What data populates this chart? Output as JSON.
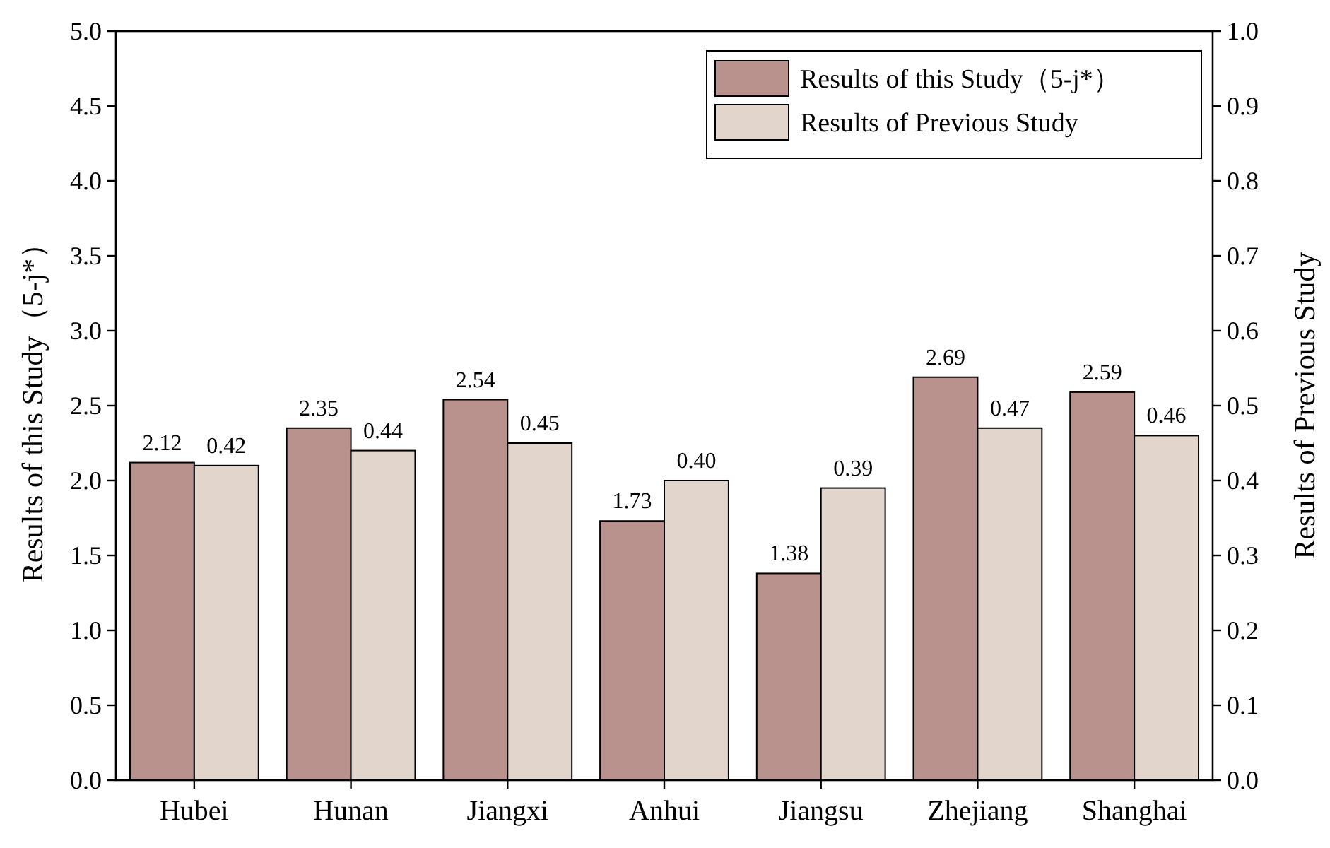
{
  "chart_data": {
    "type": "bar",
    "categories": [
      "Hubei",
      "Hunan",
      "Jiangxi",
      "Anhui",
      "Jiangsu",
      "Zhejiang",
      "Shanghai"
    ],
    "ylabel": "Results of this Study（5-j*）",
    "y2label": "Results of Previous Study",
    "legend": "top right",
    "series": [
      {
        "name": "Results of this Study（5-j*）",
        "color": "#b9928d",
        "values": [
          2.12,
          2.35,
          2.54,
          1.73,
          1.38,
          2.69,
          2.59
        ],
        "value_labels": [
          "2.12",
          "2.35",
          "2.54",
          "1.73",
          "1.38",
          "2.69",
          "2.59"
        ]
      },
      {
        "name": "Results of Previous Study",
        "color": "#e1d5cc",
        "axis": "y2",
        "values": [
          0.42,
          0.44,
          0.45,
          0.4,
          0.39,
          0.47,
          0.46
        ],
        "value_labels": [
          "0.42",
          "0.44",
          "0.45",
          "0.40",
          "0.39",
          "0.47",
          "0.46"
        ]
      }
    ],
    "ylim": [
      0,
      5
    ],
    "yticks": [
      {
        "value": 0,
        "label": "0.0"
      },
      0.5,
      {
        "value": 1,
        "label": "1.0"
      },
      1.5,
      {
        "value": 2,
        "label": "2.0"
      },
      2.5,
      {
        "value": 3,
        "label": "3.0"
      },
      3.5,
      {
        "value": 4,
        "label": "4.0"
      },
      4.5,
      {
        "value": 5,
        "label": "5.0"
      }
    ],
    "y2lim": [
      0,
      1
    ],
    "y2ticks": [
      {
        "value": 0,
        "label": "0.0"
      },
      0.1,
      0.2,
      0.3,
      0.4,
      0.5,
      0.6,
      0.7,
      0.8,
      0.9,
      {
        "value": 1,
        "label": "1.0"
      }
    ]
  }
}
